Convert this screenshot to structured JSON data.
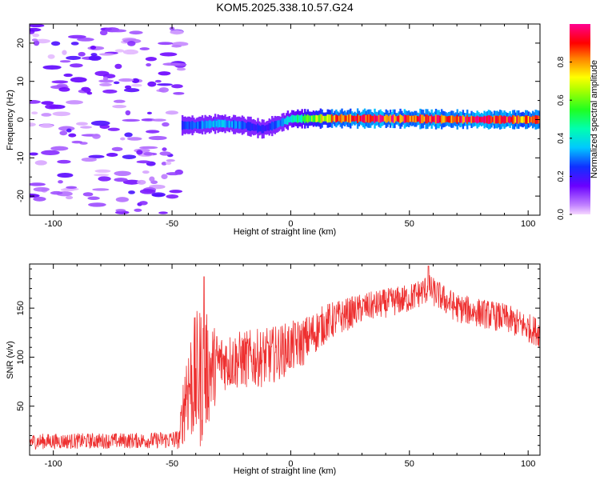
{
  "title": "KOM5.2025.338.10.57.G24",
  "chart_data": [
    {
      "type": "heatmap",
      "name": "spectrogram",
      "xlabel": "Height of straight line (km)",
      "ylabel": "Frequency (Hz)",
      "xlim": [
        -110,
        105
      ],
      "ylim": [
        -25,
        25
      ],
      "xticks": [
        -100,
        -50,
        0,
        50,
        100
      ],
      "yticks": [
        -20,
        -10,
        0,
        10,
        20
      ],
      "colorbar": {
        "label": "Normalized spectral amplitude",
        "range": [
          0,
          1
        ],
        "ticks": [
          0.0,
          0.2,
          0.4,
          0.6,
          0.8
        ],
        "colormap": "rainbow (magenta-purple-blue-cyan-green-yellow-red-pink)"
      },
      "ridge": {
        "description": "signal ridge near 0 Hz starting at about -46 km",
        "points": [
          {
            "x": -46,
            "y": -1.5
          },
          {
            "x": -40,
            "y": -1.5
          },
          {
            "x": -30,
            "y": -1.0
          },
          {
            "x": -20,
            "y": -1.5
          },
          {
            "x": -12,
            "y": -2.5
          },
          {
            "x": -5,
            "y": -1.0
          },
          {
            "x": 0,
            "y": 0.2
          },
          {
            "x": 20,
            "y": 0.3
          },
          {
            "x": 50,
            "y": 0.2
          },
          {
            "x": 80,
            "y": 0.0
          },
          {
            "x": 105,
            "y": 0.0
          }
        ],
        "amplitude": [
          {
            "x": -46,
            "a": 0.25
          },
          {
            "x": -30,
            "a": 0.35
          },
          {
            "x": -10,
            "a": 0.2
          },
          {
            "x": 5,
            "a": 0.5
          },
          {
            "x": 20,
            "a": 0.85
          },
          {
            "x": 40,
            "a": 0.9
          },
          {
            "x": 60,
            "a": 0.85
          },
          {
            "x": 80,
            "a": 0.9
          },
          {
            "x": 105,
            "a": 0.8
          }
        ]
      },
      "noise_region": {
        "x_from": -110,
        "x_to": -46,
        "amplitude": 0.05
      }
    },
    {
      "type": "line",
      "name": "snr",
      "xlabel": "Height of straight line (km)",
      "ylabel": "SNR (v/v)",
      "xlim": [
        -110,
        105
      ],
      "ylim": [
        0,
        195
      ],
      "xticks": [
        -100,
        -50,
        0,
        50,
        100
      ],
      "yticks": [
        50,
        100,
        150
      ],
      "color": "#ee3030",
      "series": [
        {
          "name": "SNR",
          "envelope": [
            {
              "x": -110,
              "mid": 14,
              "spread": 8
            },
            {
              "x": -60,
              "mid": 15,
              "spread": 8
            },
            {
              "x": -47,
              "mid": 16,
              "spread": 10
            },
            {
              "x": -44,
              "mid": 70,
              "spread": 55
            },
            {
              "x": -38,
              "mid": 80,
              "spread": 75
            },
            {
              "x": -30,
              "mid": 95,
              "spread": 30
            },
            {
              "x": -10,
              "mid": 100,
              "spread": 30
            },
            {
              "x": 5,
              "mid": 115,
              "spread": 25
            },
            {
              "x": 15,
              "mid": 135,
              "spread": 20
            },
            {
              "x": 30,
              "mid": 150,
              "spread": 15
            },
            {
              "x": 50,
              "mid": 160,
              "spread": 15
            },
            {
              "x": 58,
              "mid": 170,
              "spread": 15
            },
            {
              "x": 70,
              "mid": 150,
              "spread": 15
            },
            {
              "x": 90,
              "mid": 140,
              "spread": 15
            },
            {
              "x": 105,
              "mid": 125,
              "spread": 15
            }
          ],
          "notable_peaks": [
            {
              "x": -36.5,
              "y": 182
            },
            {
              "x": 58,
              "y": 193
            }
          ]
        }
      ]
    }
  ]
}
